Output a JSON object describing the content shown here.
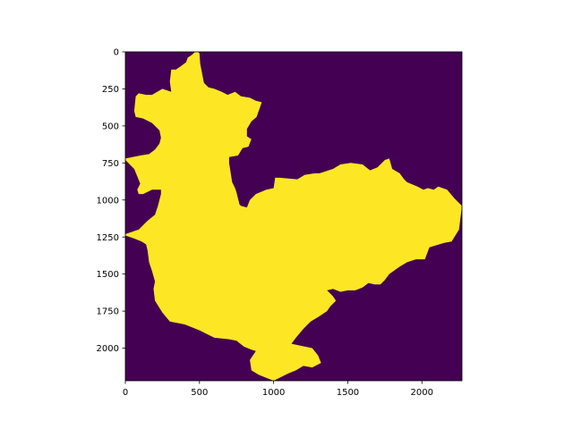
{
  "chart_data": {
    "type": "heatmap",
    "title": "",
    "xlabel": "",
    "ylabel": "",
    "xlim": [
      0,
      2270
    ],
    "ylim": [
      2220,
      0
    ],
    "x_ticks": [
      0,
      500,
      1000,
      1500,
      2000
    ],
    "y_ticks": [
      0,
      250,
      500,
      750,
      1000,
      1250,
      1500,
      1750,
      2000
    ],
    "x_tick_labels": [
      "0",
      "500",
      "1000",
      "1500",
      "2000"
    ],
    "y_tick_labels": [
      "0",
      "250",
      "500",
      "750",
      "1000",
      "1250",
      "1500",
      "1750",
      "2000"
    ],
    "colors": {
      "background_value": "#440154",
      "region_value": "#fde725"
    },
    "grid": false,
    "legend": "none",
    "region_outline": [
      [
        490,
        0
      ],
      [
        500,
        10
      ],
      [
        505,
        80
      ],
      [
        530,
        210
      ],
      [
        560,
        240
      ],
      [
        600,
        250
      ],
      [
        650,
        270
      ],
      [
        690,
        290
      ],
      [
        740,
        270
      ],
      [
        780,
        300
      ],
      [
        840,
        310
      ],
      [
        860,
        320
      ],
      [
        880,
        330
      ],
      [
        920,
        340
      ],
      [
        885,
        440
      ],
      [
        850,
        470
      ],
      [
        820,
        520
      ],
      [
        820,
        570
      ],
      [
        850,
        590
      ],
      [
        830,
        640
      ],
      [
        790,
        650
      ],
      [
        760,
        700
      ],
      [
        700,
        710
      ],
      [
        700,
        750
      ],
      [
        720,
        880
      ],
      [
        740,
        920
      ],
      [
        750,
        950
      ],
      [
        770,
        1030
      ],
      [
        780,
        1040
      ],
      [
        820,
        1050
      ],
      [
        840,
        1000
      ],
      [
        880,
        960
      ],
      [
        950,
        930
      ],
      [
        1000,
        920
      ],
      [
        1010,
        850
      ],
      [
        1040,
        850
      ],
      [
        1100,
        855
      ],
      [
        1160,
        860
      ],
      [
        1210,
        830
      ],
      [
        1280,
        820
      ],
      [
        1310,
        820
      ],
      [
        1400,
        790
      ],
      [
        1450,
        760
      ],
      [
        1520,
        750
      ],
      [
        1600,
        760
      ],
      [
        1650,
        800
      ],
      [
        1700,
        780
      ],
      [
        1750,
        730
      ],
      [
        1780,
        720
      ],
      [
        1800,
        790
      ],
      [
        1850,
        820
      ],
      [
        1880,
        860
      ],
      [
        1900,
        880
      ],
      [
        1970,
        910
      ],
      [
        2010,
        930
      ],
      [
        2040,
        920
      ],
      [
        2080,
        930
      ],
      [
        2110,
        910
      ],
      [
        2170,
        930
      ],
      [
        2220,
        990
      ],
      [
        2270,
        1040
      ],
      [
        2250,
        1200
      ],
      [
        2200,
        1280
      ],
      [
        2150,
        1290
      ],
      [
        2050,
        1320
      ],
      [
        2020,
        1400
      ],
      [
        1960,
        1400
      ],
      [
        1900,
        1420
      ],
      [
        1850,
        1450
      ],
      [
        1780,
        1500
      ],
      [
        1750,
        1540
      ],
      [
        1720,
        1570
      ],
      [
        1680,
        1570
      ],
      [
        1640,
        1560
      ],
      [
        1600,
        1590
      ],
      [
        1550,
        1610
      ],
      [
        1500,
        1610
      ],
      [
        1450,
        1620
      ],
      [
        1400,
        1600
      ],
      [
        1360,
        1610
      ],
      [
        1400,
        1650
      ],
      [
        1420,
        1680
      ],
      [
        1380,
        1720
      ],
      [
        1360,
        1750
      ],
      [
        1300,
        1790
      ],
      [
        1250,
        1820
      ],
      [
        1200,
        1870
      ],
      [
        1150,
        1930
      ],
      [
        1120,
        1970
      ],
      [
        1260,
        2000
      ],
      [
        1300,
        2050
      ],
      [
        1320,
        2100
      ],
      [
        1260,
        2130
      ],
      [
        1200,
        2120
      ],
      [
        1150,
        2150
      ],
      [
        1100,
        2170
      ],
      [
        1000,
        2220
      ],
      [
        950,
        2200
      ],
      [
        900,
        2180
      ],
      [
        850,
        2150
      ],
      [
        840,
        2080
      ],
      [
        880,
        2020
      ],
      [
        850,
        2010
      ],
      [
        800,
        1990
      ],
      [
        750,
        1950
      ],
      [
        700,
        1940
      ],
      [
        600,
        1930
      ],
      [
        500,
        1880
      ],
      [
        450,
        1860
      ],
      [
        400,
        1840
      ],
      [
        300,
        1820
      ],
      [
        250,
        1760
      ],
      [
        200,
        1680
      ],
      [
        190,
        1600
      ],
      [
        200,
        1550
      ],
      [
        180,
        1480
      ],
      [
        160,
        1420
      ],
      [
        150,
        1340
      ],
      [
        140,
        1300
      ],
      [
        110,
        1280
      ],
      [
        60,
        1260
      ],
      [
        0,
        1240
      ],
      [
        0,
        1230
      ],
      [
        90,
        1200
      ],
      [
        150,
        1140
      ],
      [
        200,
        1100
      ],
      [
        220,
        1040
      ],
      [
        240,
        960
      ],
      [
        240,
        930
      ],
      [
        180,
        930
      ],
      [
        120,
        960
      ],
      [
        90,
        960
      ],
      [
        80,
        930
      ],
      [
        100,
        890
      ],
      [
        80,
        840
      ],
      [
        60,
        790
      ],
      [
        0,
        730
      ],
      [
        0,
        720
      ],
      [
        100,
        700
      ],
      [
        160,
        690
      ],
      [
        200,
        660
      ],
      [
        230,
        620
      ],
      [
        240,
        580
      ],
      [
        230,
        530
      ],
      [
        180,
        480
      ],
      [
        120,
        450
      ],
      [
        70,
        440
      ],
      [
        60,
        400
      ],
      [
        70,
        300
      ],
      [
        90,
        280
      ],
      [
        140,
        290
      ],
      [
        180,
        290
      ],
      [
        250,
        250
      ],
      [
        310,
        270
      ],
      [
        300,
        200
      ],
      [
        310,
        120
      ],
      [
        340,
        120
      ],
      [
        370,
        100
      ],
      [
        410,
        70
      ],
      [
        420,
        40
      ],
      [
        450,
        20
      ],
      [
        470,
        0
      ]
    ]
  }
}
